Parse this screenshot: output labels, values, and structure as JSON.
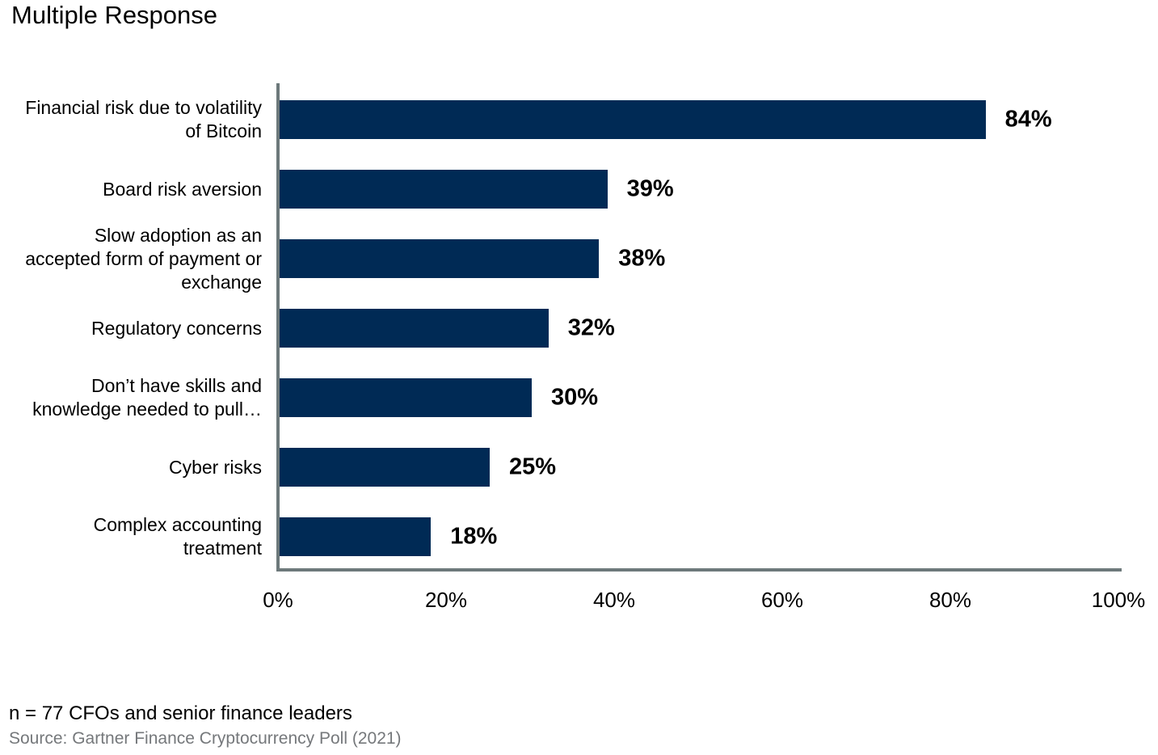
{
  "title": "Multiple Response",
  "footer": {
    "sample_note": "n = 77 CFOs and senior finance leaders",
    "source": "Source: Gartner Finance Cryptocurrency Poll (2021)"
  },
  "colors": {
    "bar": "#002A55",
    "axis": "#6D797B",
    "title_text": "#000000",
    "value_label_text": "#000000",
    "source_text": "#75787B",
    "background": "#FFFFFF"
  },
  "chart_data": {
    "type": "bar",
    "orientation": "horizontal",
    "title": "Multiple Response",
    "categories": [
      "Financial risk due to volatility of Bitcoin",
      "Board risk aversion",
      "Slow adoption as an accepted form of payment or exchange",
      "Regulatory concerns",
      "Don’t have skills and knowledge needed to pull…",
      "Cyber risks",
      "Complex accounting treatment"
    ],
    "category_lines": [
      [
        "Financial risk due to volatility",
        "of Bitcoin"
      ],
      [
        "Board risk aversion"
      ],
      [
        "Slow adoption as an",
        "accepted form of payment or",
        "exchange"
      ],
      [
        "Regulatory concerns"
      ],
      [
        "Don’t have skills and",
        "knowledge needed to pull…"
      ],
      [
        "Cyber risks"
      ],
      [
        "Complex accounting",
        "treatment"
      ]
    ],
    "values": [
      84,
      39,
      38,
      32,
      30,
      25,
      18
    ],
    "value_labels": [
      "84%",
      "39%",
      "38%",
      "32%",
      "30%",
      "25%",
      "18%"
    ],
    "x_ticks": [
      "0%",
      "20%",
      "40%",
      "60%",
      "80%",
      "100%"
    ],
    "x_tick_values": [
      0,
      20,
      40,
      60,
      80,
      100
    ],
    "xlim": [
      0,
      100
    ],
    "xlabel": "",
    "ylabel": "",
    "grid": false,
    "legend": false
  }
}
